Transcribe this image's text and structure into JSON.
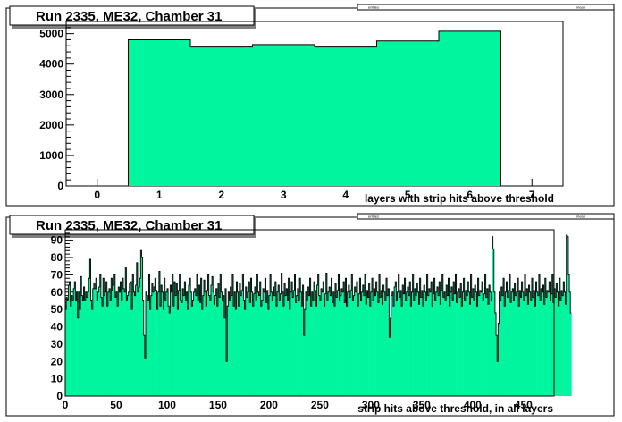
{
  "colors": {
    "fill": "#00f59e",
    "outline": "#000000",
    "frame_bg": "#ffffff",
    "shadow": "#7f7f7f"
  },
  "panels": [
    {
      "title": "Run 2335, ME32, Chamber 31",
      "stats_labels": [
        "entries",
        "mean"
      ]
    },
    {
      "title": "Run 2335, ME32, Chamber 31",
      "stats_labels": [
        "entries",
        "mean"
      ]
    }
  ],
  "chart_data": [
    {
      "type": "bar",
      "title": "Run 2335, ME32, Chamber 31",
      "xlabel": "layers with strip hits above threshold",
      "ylabel": "",
      "x_range": [
        -0.5,
        7.5
      ],
      "ylim": [
        0,
        5400
      ],
      "x_ticks": [
        0,
        1,
        2,
        3,
        4,
        5,
        6,
        7
      ],
      "y_ticks": [
        0,
        1000,
        2000,
        3000,
        4000,
        5000
      ],
      "bin_width": 1,
      "bins": [
        1,
        2,
        3,
        4,
        5,
        6
      ],
      "values": [
        4800,
        4560,
        4640,
        4560,
        4760,
        5080
      ],
      "grid": false
    },
    {
      "type": "bar",
      "title": "Run 2335, ME32, Chamber 31",
      "xlabel": "strip hits above threshold, in all layers",
      "ylabel": "",
      "x_range": [
        0,
        480
      ],
      "ylim": [
        0,
        96
      ],
      "x_ticks": [
        0,
        50,
        100,
        150,
        200,
        250,
        300,
        350,
        400,
        450
      ],
      "y_ticks": [
        0,
        10,
        20,
        30,
        40,
        50,
        60,
        70,
        80,
        90
      ],
      "bin_width": 1,
      "bins_start": 0,
      "values": [
        50,
        57,
        55,
        64,
        66,
        52,
        58,
        55,
        62,
        66,
        55,
        60,
        45,
        60,
        50,
        69,
        58,
        55,
        63,
        55,
        60,
        57,
        60,
        68,
        79,
        55,
        50,
        62,
        65,
        62,
        68,
        55,
        60,
        63,
        70,
        57,
        52,
        68,
        58,
        60,
        66,
        52,
        60,
        62,
        55,
        68,
        61,
        64,
        70,
        57,
        60,
        52,
        63,
        60,
        66,
        55,
        68,
        62,
        60,
        74,
        55,
        58,
        60,
        65,
        66,
        50,
        70,
        60,
        58,
        64,
        77,
        60,
        63,
        68,
        84,
        80,
        55,
        35,
        22,
        60,
        58,
        55,
        70,
        50,
        58,
        65,
        60,
        63,
        68,
        61,
        50,
        60,
        72,
        52,
        64,
        60,
        50,
        68,
        55,
        60,
        62,
        52,
        48,
        64,
        60,
        70,
        52,
        66,
        58,
        65,
        50,
        61,
        70,
        55,
        54,
        62,
        58,
        66,
        55,
        60,
        50,
        64,
        68,
        60,
        52,
        55,
        60,
        62,
        58,
        70,
        55,
        64,
        54,
        68,
        50,
        58,
        67,
        60,
        52,
        61,
        70,
        58,
        55,
        64,
        69,
        60,
        53,
        58,
        62,
        52,
        65,
        57,
        70,
        60,
        55,
        58,
        45,
        62,
        20,
        52,
        60,
        55,
        63,
        58,
        70,
        52,
        60,
        50,
        66,
        60,
        52,
        65,
        58,
        61,
        70,
        55,
        50,
        63,
        57,
        60,
        66,
        54,
        68,
        60,
        52,
        59,
        63,
        55,
        70,
        60,
        58,
        66,
        52,
        55,
        62,
        60,
        68,
        54,
        61,
        50,
        58,
        70,
        60,
        55,
        63,
        58,
        66,
        52,
        60,
        64,
        55,
        59,
        71,
        60,
        52,
        65,
        58,
        62,
        55,
        68,
        50,
        60,
        66,
        57,
        61,
        70,
        54,
        58,
        62,
        55,
        68,
        60,
        52,
        64,
        35,
        50,
        60,
        55,
        63,
        58,
        68,
        52,
        60,
        55,
        66,
        61,
        52,
        64,
        70,
        58,
        55,
        62,
        60,
        66,
        52,
        59,
        71,
        55,
        60,
        63,
        58,
        68,
        54,
        60,
        52,
        65,
        57,
        61,
        70,
        55,
        58,
        62,
        60,
        66,
        54,
        68,
        52,
        60,
        64,
        57,
        61,
        70,
        55,
        58,
        63,
        60,
        66,
        52,
        59,
        68,
        55,
        60,
        64,
        58,
        70,
        53,
        61,
        57,
        65,
        52,
        60,
        68,
        55,
        62,
        58,
        66,
        60,
        54,
        70,
        57,
        61,
        53,
        64,
        60,
        55,
        68,
        58,
        62,
        34,
        45,
        58,
        60,
        52,
        63,
        66,
        55,
        60,
        70,
        57,
        61,
        52,
        64,
        59,
        68,
        55,
        60,
        63,
        58,
        66,
        52,
        60,
        70,
        55,
        62,
        58,
        65,
        60,
        53,
        68,
        57,
        61,
        52,
        64,
        60,
        55,
        70,
        58,
        62,
        60,
        66,
        52,
        59,
        68,
        55,
        60,
        63,
        58,
        66,
        53,
        61,
        70,
        57,
        60,
        55,
        64,
        58,
        68,
        52,
        60,
        63,
        55,
        66,
        59,
        70,
        54,
        60,
        62,
        57,
        65,
        52,
        60,
        68,
        55,
        61,
        58,
        66,
        60,
        53,
        70,
        57,
        62,
        55,
        64,
        60,
        52,
        68,
        58,
        61,
        60,
        66,
        55,
        59,
        70,
        57,
        62,
        53,
        64,
        60,
        55,
        92,
        85,
        60,
        48,
        35,
        20,
        42,
        60,
        55,
        63,
        58,
        68,
        52,
        60,
        66,
        57,
        61,
        70,
        54,
        60,
        62,
        55,
        65,
        58,
        60,
        68,
        52,
        61,
        57,
        66,
        60,
        55,
        70,
        58,
        62,
        53,
        64,
        60,
        55,
        68,
        57,
        61,
        52,
        66,
        60,
        58,
        70,
        55,
        62,
        60,
        64,
        53,
        68,
        57,
        61,
        60,
        66,
        55,
        59,
        70,
        54,
        62,
        57,
        65,
        60,
        52,
        68,
        55,
        61,
        58,
        66,
        60,
        53,
        93,
        92,
        70,
        60,
        48
      ],
      "grid": false
    }
  ]
}
